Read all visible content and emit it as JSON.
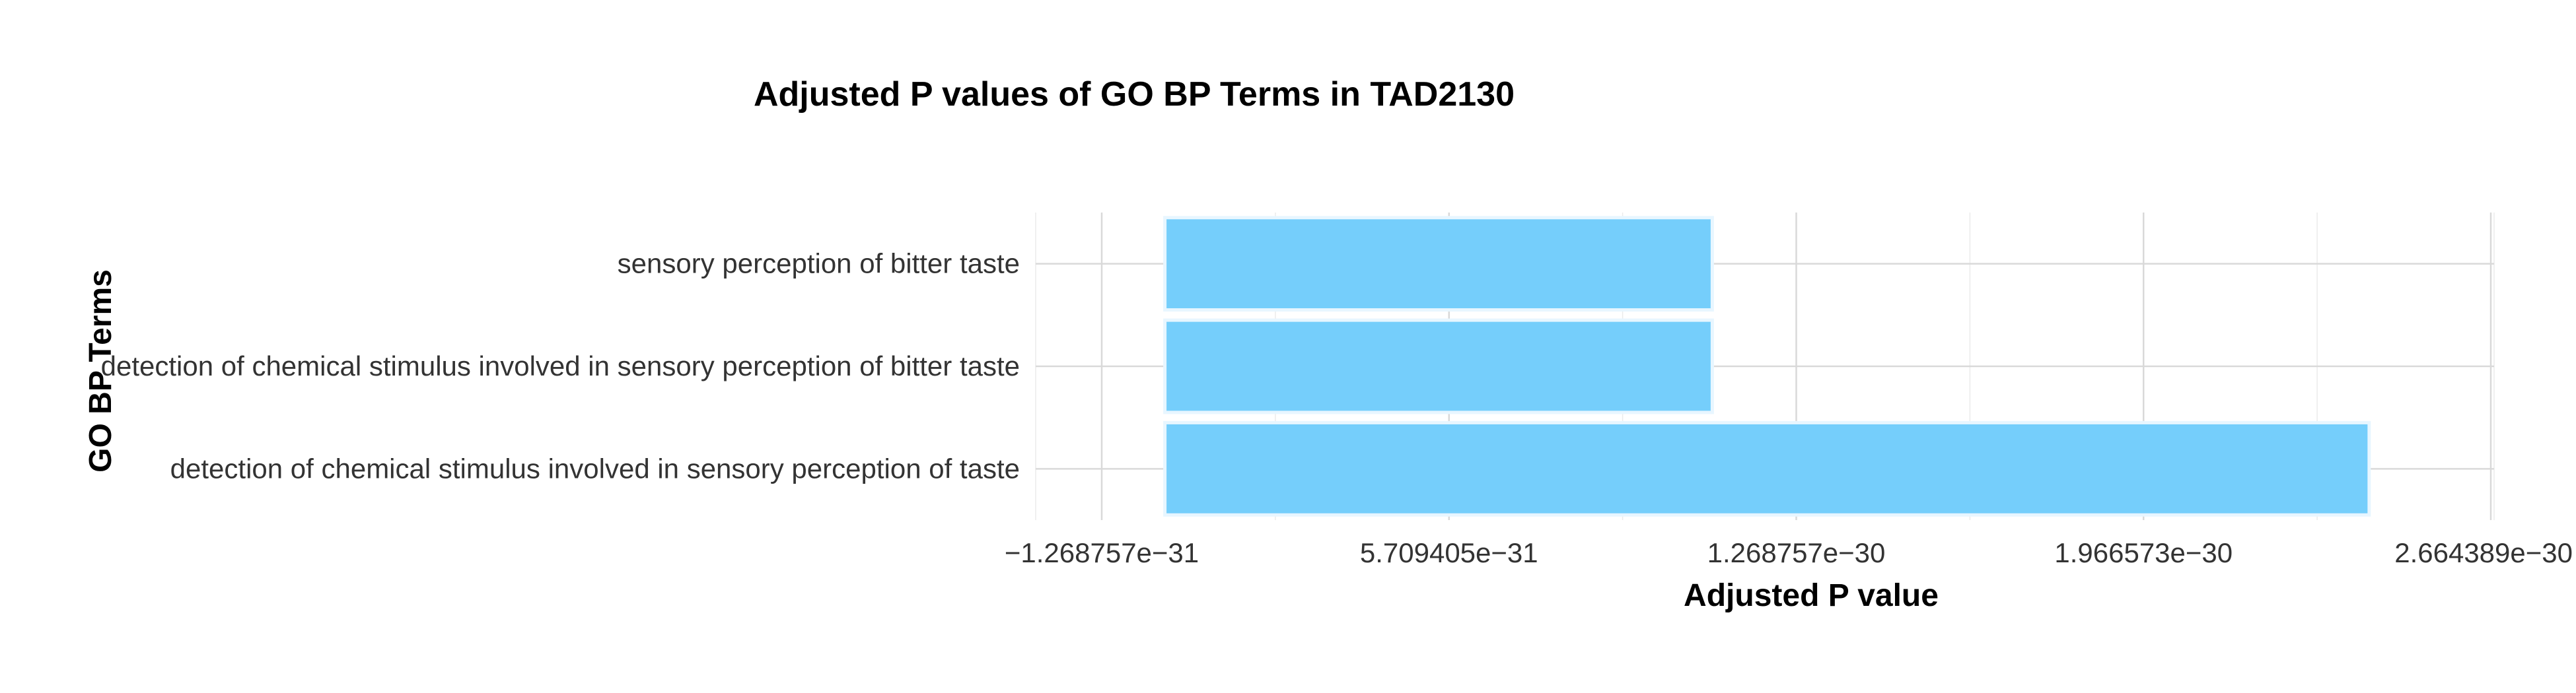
{
  "chart_data": {
    "type": "bar",
    "orientation": "horizontal",
    "title": "Adjusted P values of GO BP Terms in TAD2130",
    "xlabel": "Adjusted P value",
    "ylabel": "GO BP Terms",
    "categories": [
      "sensory perception of bitter taste",
      "detection of chemical stimulus involved in sensory perception of bitter taste",
      "detection of chemical stimulus involved in sensory perception of taste"
    ],
    "values": [
      1.1e-30,
      1.1e-30,
      2.42e-30
    ],
    "xlim": [
      -1.268757e-31,
      2.664389e-30
    ],
    "x_ticks": [
      {
        "value": -1.268757e-31,
        "label": "−1.268757e−31"
      },
      {
        "value": 5.709405e-31,
        "label": "5.709405e−31"
      },
      {
        "value": 1.268757e-30,
        "label": "1.268757e−30"
      },
      {
        "value": 1.966573e-30,
        "label": "1.966573e−30"
      },
      {
        "value": 2.664389e-30,
        "label": "2.664389e−30"
      }
    ],
    "bar_color": "#75cefb",
    "grid": true,
    "legend": "none"
  }
}
